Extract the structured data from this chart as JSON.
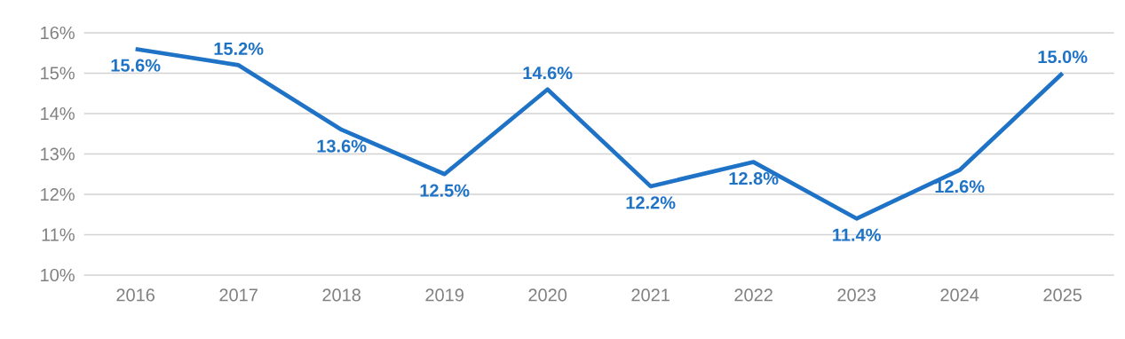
{
  "chart_data": {
    "type": "line",
    "categories": [
      "2016",
      "2017",
      "2018",
      "2019",
      "2020",
      "2021",
      "2022",
      "2023",
      "2024",
      "2025"
    ],
    "values": [
      15.6,
      15.2,
      13.6,
      12.5,
      14.6,
      12.2,
      12.8,
      11.4,
      12.6,
      15.0
    ],
    "value_labels": [
      "15.6%",
      "15.2%",
      "13.6%",
      "12.5%",
      "14.6%",
      "12.2%",
      "12.8%",
      "11.4%",
      "12.6%",
      "15.0%"
    ],
    "color": "#1f73c6",
    "ylim": [
      10,
      16
    ],
    "yticks": [
      {
        "value": 10,
        "label": "10%"
      },
      {
        "value": 11,
        "label": "11%"
      },
      {
        "value": 12,
        "label": "12%"
      },
      {
        "value": 13,
        "label": "13%"
      },
      {
        "value": 14,
        "label": "14%"
      },
      {
        "value": 15,
        "label": "15%"
      },
      {
        "value": 16,
        "label": "16%"
      }
    ],
    "grid": "y",
    "marker": "none",
    "line_style": "solid"
  }
}
